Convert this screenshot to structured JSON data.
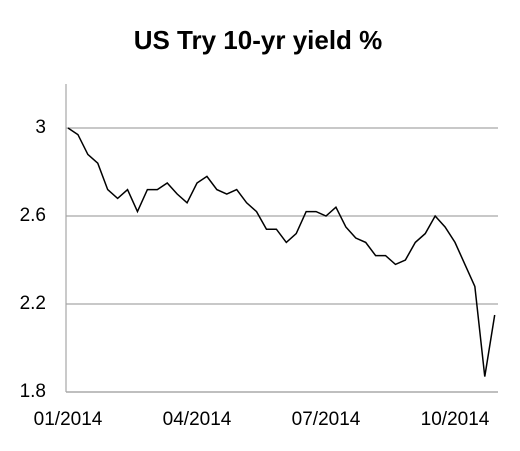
{
  "chart_data": {
    "type": "line",
    "title": "US Try 10-yr yield %",
    "categories": [
      "01/2014",
      null,
      null,
      null,
      null,
      null,
      null,
      null,
      null,
      null,
      null,
      null,
      null,
      "04/2014",
      null,
      null,
      null,
      null,
      null,
      null,
      null,
      null,
      null,
      null,
      null,
      null,
      "07/2014",
      null,
      null,
      null,
      null,
      null,
      null,
      null,
      null,
      null,
      null,
      null,
      null,
      "10/2014",
      null,
      null,
      null,
      null
    ],
    "series": [
      {
        "name": "US Try 10-yr yield",
        "color": "#000000",
        "values": [
          3.0,
          2.97,
          2.88,
          2.84,
          2.72,
          2.68,
          2.72,
          2.62,
          2.72,
          2.72,
          2.75,
          2.7,
          2.66,
          2.75,
          2.78,
          2.72,
          2.7,
          2.72,
          2.66,
          2.62,
          2.54,
          2.54,
          2.48,
          2.52,
          2.62,
          2.62,
          2.6,
          2.64,
          2.55,
          2.5,
          2.48,
          2.42,
          2.42,
          2.38,
          2.4,
          2.48,
          2.52,
          2.6,
          2.55,
          2.48,
          2.38,
          2.28,
          1.87,
          2.15
        ]
      }
    ],
    "ylim": [
      1.8,
      3.2
    ],
    "yticks": [
      1.8,
      2.2,
      2.6,
      3
    ],
    "grid": true
  }
}
